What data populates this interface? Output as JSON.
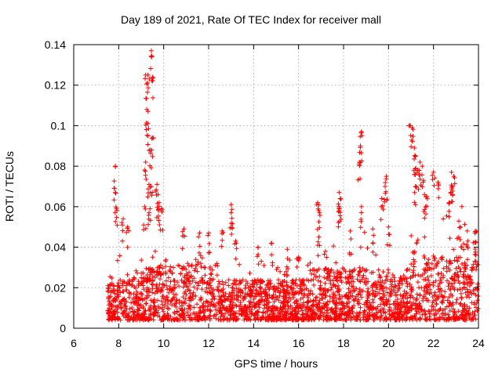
{
  "chart_data": {
    "type": "scatter",
    "title": "Day 189 of 2021, Rate Of TEC Index for receiver mall",
    "xlabel": "GPS time / hours",
    "ylabel": "ROTI / TECUs",
    "xlim": [
      6,
      24
    ],
    "ylim": [
      0,
      0.14
    ],
    "xticks": [
      "6",
      "8",
      "10",
      "12",
      "14",
      "16",
      "18",
      "20",
      "22",
      "24"
    ],
    "yticks": [
      "0",
      "0.02",
      "0.04",
      "0.06",
      "0.08",
      "0.1",
      "0.12",
      "0.14"
    ],
    "grid": true,
    "marker": "+",
    "color": "#ff0000",
    "data_start_hour": 7.5,
    "peaks": [
      [
        7.85,
        0.08
      ],
      [
        7.85,
        0.067
      ],
      [
        7.9,
        0.059
      ],
      [
        8.2,
        0.054
      ],
      [
        8.4,
        0.05
      ],
      [
        9.2,
        0.125
      ],
      [
        9.3,
        0.125
      ],
      [
        9.45,
        0.137
      ],
      [
        9.5,
        0.124
      ],
      [
        9.25,
        0.108
      ],
      [
        9.3,
        0.101
      ],
      [
        9.2,
        0.082
      ],
      [
        9.4,
        0.088
      ],
      [
        9.5,
        0.094
      ],
      [
        9.35,
        0.071
      ],
      [
        9.45,
        0.07
      ],
      [
        9.15,
        0.06
      ],
      [
        9.35,
        0.057
      ],
      [
        9.7,
        0.071
      ],
      [
        9.8,
        0.062
      ],
      [
        9.75,
        0.066
      ],
      [
        9.9,
        0.059
      ],
      [
        10.9,
        0.049
      ],
      [
        11.6,
        0.047
      ],
      [
        12.0,
        0.047
      ],
      [
        12.6,
        0.048
      ],
      [
        13.0,
        0.061
      ],
      [
        13.0,
        0.057
      ],
      [
        13.2,
        0.043
      ],
      [
        14.2,
        0.04
      ],
      [
        14.8,
        0.042
      ],
      [
        15.5,
        0.039
      ],
      [
        16.0,
        0.035
      ],
      [
        16.85,
        0.062
      ],
      [
        16.9,
        0.058
      ],
      [
        16.9,
        0.045
      ],
      [
        17.2,
        0.038
      ],
      [
        17.8,
        0.067
      ],
      [
        17.85,
        0.064
      ],
      [
        17.8,
        0.058
      ],
      [
        18.3,
        0.048
      ],
      [
        18.8,
        0.097
      ],
      [
        18.75,
        0.09
      ],
      [
        18.7,
        0.082
      ],
      [
        18.8,
        0.06
      ],
      [
        19.3,
        0.049
      ],
      [
        19.7,
        0.064
      ],
      [
        19.9,
        0.075
      ],
      [
        19.85,
        0.07
      ],
      [
        20.0,
        0.05
      ],
      [
        20.95,
        0.1
      ],
      [
        21.05,
        0.099
      ],
      [
        21.15,
        0.089
      ],
      [
        21.2,
        0.085
      ],
      [
        21.3,
        0.078
      ],
      [
        21.4,
        0.082
      ],
      [
        21.2,
        0.07
      ],
      [
        21.5,
        0.08
      ],
      [
        21.6,
        0.066
      ],
      [
        21.7,
        0.065
      ],
      [
        22.0,
        0.077
      ],
      [
        22.2,
        0.072
      ],
      [
        22.8,
        0.077
      ],
      [
        22.9,
        0.075
      ],
      [
        22.85,
        0.07
      ],
      [
        22.7,
        0.062
      ],
      [
        23.2,
        0.05
      ],
      [
        23.5,
        0.048
      ],
      [
        23.9,
        0.048
      ]
    ]
  }
}
